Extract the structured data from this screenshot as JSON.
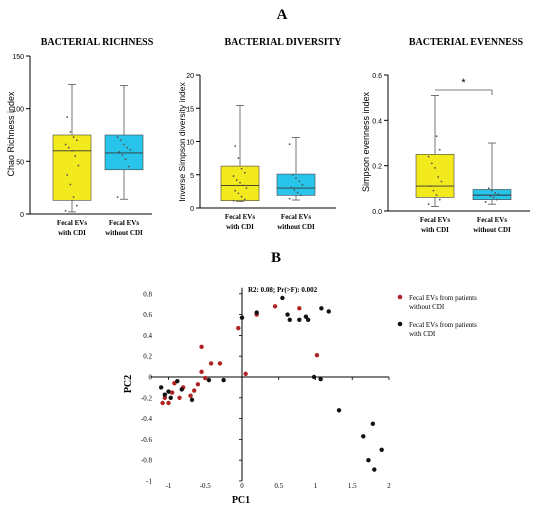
{
  "panel_labels": {
    "a": "A",
    "b": "B"
  },
  "chart_data": [
    {
      "type": "box",
      "title": "BACTERIAL RICHNESS",
      "ylabel": "Chao Richness index",
      "ylim": [
        0,
        150
      ],
      "yticks": [
        0,
        50,
        100,
        150
      ],
      "categories": [
        "Fecal EVs with CDI",
        "Fecal EVs without CDI"
      ],
      "category_lines": [
        [
          "Fecal EVs",
          "with CDI"
        ],
        [
          "Fecal EVs",
          "without CDI"
        ]
      ],
      "colors": [
        "#f2ea1c",
        "#29c4ea"
      ],
      "boxes": [
        {
          "min": 2,
          "q1": 13,
          "median": 60,
          "q3": 75,
          "max": 123
        },
        {
          "min": 14,
          "q1": 42,
          "median": 58,
          "q3": 75,
          "max": 122
        }
      ],
      "points": [
        [
          3,
          8,
          16,
          28,
          37,
          46,
          55,
          60,
          63,
          66,
          70,
          73,
          78,
          92
        ],
        [
          16,
          45,
          52,
          56,
          59,
          61,
          63,
          66,
          70,
          73
        ]
      ],
      "annotations": []
    },
    {
      "type": "box",
      "title": "BACTERIAL DIVERSITY",
      "ylabel": "Inverse Simpson diversity index",
      "ylim": [
        0,
        20
      ],
      "yticks": [
        0,
        5,
        10,
        15,
        20
      ],
      "categories": [
        "Fecal EVs with CDI",
        "Fecal EVs without CDI"
      ],
      "category_lines": [
        [
          "Fecal EVs",
          "with CDI"
        ],
        [
          "Fecal EVs",
          "without CDI"
        ]
      ],
      "colors": [
        "#f2ea1c",
        "#29c4ea"
      ],
      "boxes": [
        {
          "min": 1.0,
          "q1": 1.1,
          "median": 3.4,
          "q3": 6.3,
          "max": 15.4
        },
        {
          "min": 1.2,
          "q1": 1.9,
          "median": 3.0,
          "q3": 5.1,
          "max": 10.6
        }
      ],
      "points": [
        [
          1.1,
          1.3,
          1.7,
          2.2,
          2.6,
          3.0,
          3.4,
          3.8,
          4.2,
          4.8,
          5.3,
          5.9,
          7.5,
          9.3
        ],
        [
          1.4,
          1.9,
          2.3,
          2.7,
          3.1,
          3.5,
          4.0,
          4.5,
          5.0,
          9.6
        ]
      ],
      "annotations": []
    },
    {
      "type": "box",
      "title": "BACTERIAL EVENNESS",
      "ylabel": "Simpson evenness index",
      "ylim": [
        0,
        0.6
      ],
      "yticks": [
        0.0,
        0.2,
        0.4,
        0.6
      ],
      "categories": [
        "Fecal EVs with CDI",
        "Fecal EVs without CDI"
      ],
      "category_lines": [
        [
          "Fecal EVs",
          "with CDI"
        ],
        [
          "Fecal EVs",
          "without CDI"
        ]
      ],
      "colors": [
        "#f2ea1c",
        "#29c4ea"
      ],
      "boxes": [
        {
          "min": 0.02,
          "q1": 0.06,
          "median": 0.11,
          "q3": 0.25,
          "max": 0.51
        },
        {
          "min": 0.03,
          "q1": 0.05,
          "median": 0.07,
          "q3": 0.095,
          "max": 0.3
        }
      ],
      "points": [
        [
          0.03,
          0.05,
          0.07,
          0.09,
          0.11,
          0.13,
          0.15,
          0.19,
          0.21,
          0.24,
          0.27,
          0.33
        ],
        [
          0.04,
          0.05,
          0.06,
          0.065,
          0.07,
          0.075,
          0.08,
          0.09,
          0.1
        ]
      ],
      "annotations": [
        "*"
      ]
    },
    {
      "type": "scatter",
      "xlabel": "PC1",
      "ylabel": "PC2",
      "xlim": [
        -1.25,
        2.0
      ],
      "ylim": [
        -1.0,
        0.8
      ],
      "xticks": [
        -1,
        -0.5,
        0,
        0.5,
        1,
        1.5,
        2
      ],
      "yticks": [
        -1,
        -0.8,
        -0.6,
        -0.4,
        -0.2,
        0,
        0.2,
        0.4,
        0.6,
        0.8
      ],
      "annotation": "R2: 0.08; Pr(>F): 0.002",
      "series": [
        {
          "name": "Fecal EVs from patients without CDI",
          "color": "#b22222",
          "points": [
            [
              -0.42,
              0.13
            ],
            [
              -0.3,
              0.13
            ],
            [
              -0.55,
              0.29
            ],
            [
              -0.05,
              0.47
            ],
            [
              0.05,
              0.03
            ],
            [
              0.2,
              0.6
            ],
            [
              0.45,
              0.68
            ],
            [
              0.78,
              0.66
            ],
            [
              1.02,
              0.21
            ],
            [
              -0.55,
              0.05
            ],
            [
              -0.5,
              -0.01
            ],
            [
              -0.6,
              -0.07
            ],
            [
              -0.65,
              -0.13
            ],
            [
              -0.8,
              -0.1
            ],
            [
              -0.85,
              -0.2
            ],
            [
              -0.7,
              -0.18
            ],
            [
              -1.05,
              -0.2
            ],
            [
              -1.08,
              -0.25
            ],
            [
              -1.0,
              -0.25
            ],
            [
              -0.92,
              -0.06
            ],
            [
              -0.95,
              -0.15
            ]
          ]
        },
        {
          "name": "Fecal EVs from patients with CDI",
          "color": "#111111",
          "points": [
            [
              -1.1,
              -0.1
            ],
            [
              -1.05,
              -0.17
            ],
            [
              -1.0,
              -0.14
            ],
            [
              -0.97,
              -0.2
            ],
            [
              -0.88,
              -0.04
            ],
            [
              -0.82,
              -0.12
            ],
            [
              -0.68,
              -0.22
            ],
            [
              -0.45,
              -0.03
            ],
            [
              -0.25,
              -0.03
            ],
            [
              0.0,
              0.57
            ],
            [
              0.2,
              0.62
            ],
            [
              0.55,
              0.76
            ],
            [
              0.62,
              0.6
            ],
            [
              0.65,
              0.55
            ],
            [
              0.78,
              0.55
            ],
            [
              0.87,
              0.58
            ],
            [
              0.9,
              0.55
            ],
            [
              1.08,
              0.66
            ],
            [
              1.18,
              0.63
            ],
            [
              0.98,
              0.0
            ],
            [
              1.07,
              -0.02
            ],
            [
              1.32,
              -0.32
            ],
            [
              1.65,
              -0.57
            ],
            [
              1.78,
              -0.45
            ],
            [
              1.72,
              -0.8
            ],
            [
              1.8,
              -0.89
            ],
            [
              1.9,
              -0.7
            ]
          ]
        }
      ]
    }
  ]
}
